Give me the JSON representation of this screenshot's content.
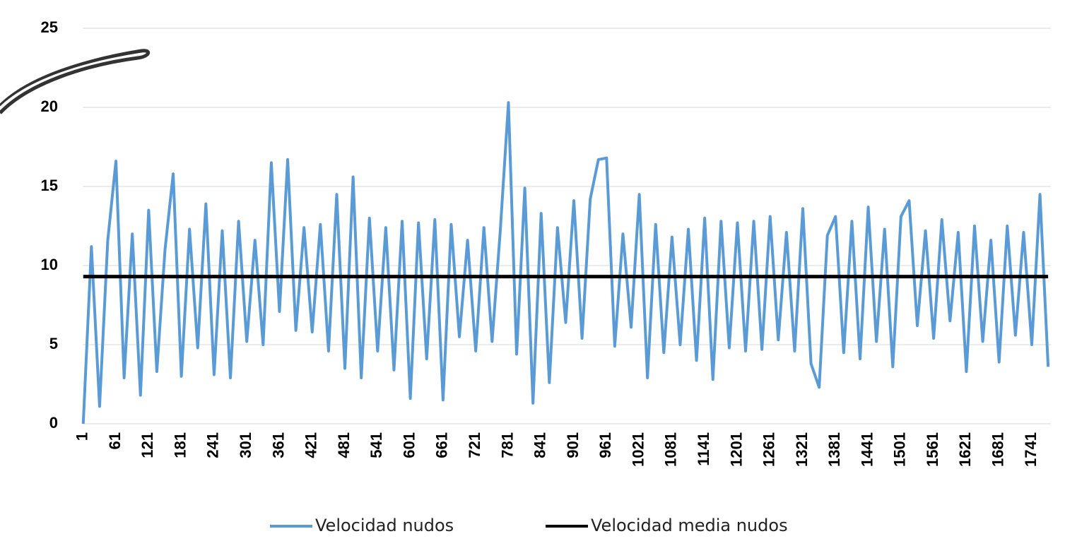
{
  "chart_data": {
    "type": "line",
    "xlim": [
      0,
      1776
    ],
    "xticks": [
      1,
      61,
      121,
      181,
      241,
      301,
      361,
      421,
      481,
      541,
      601,
      661,
      721,
      781,
      841,
      901,
      961,
      1021,
      1081,
      1141,
      1201,
      1261,
      1321,
      1381,
      1441,
      1501,
      1561,
      1621,
      1681,
      1741
    ],
    "ylim": [
      0,
      25
    ],
    "yticks": [
      0,
      5,
      10,
      15,
      20,
      25
    ],
    "grid": true,
    "legend": "bottom",
    "series": [
      {
        "name": "Velocidad nudos",
        "color": "#5b9bd5",
        "x": [
          1,
          16,
          31,
          46,
          61,
          76,
          91,
          106,
          121,
          136,
          151,
          166,
          181,
          196,
          211,
          226,
          241,
          256,
          271,
          286,
          301,
          316,
          331,
          346,
          361,
          376,
          391,
          406,
          421,
          436,
          451,
          466,
          481,
          496,
          511,
          526,
          541,
          556,
          571,
          586,
          601,
          616,
          631,
          646,
          661,
          676,
          691,
          706,
          721,
          736,
          751,
          766,
          781,
          796,
          811,
          826,
          841,
          856,
          871,
          886,
          901,
          916,
          931,
          946,
          961,
          976,
          991,
          1006,
          1021,
          1036,
          1051,
          1066,
          1081,
          1096,
          1111,
          1126,
          1141,
          1156,
          1171,
          1186,
          1201,
          1216,
          1231,
          1246,
          1261,
          1276,
          1291,
          1306,
          1321,
          1336,
          1351,
          1366,
          1381,
          1396,
          1411,
          1426,
          1441,
          1456,
          1471,
          1486,
          1501,
          1516,
          1531,
          1546,
          1561,
          1576,
          1591,
          1606,
          1621,
          1636,
          1651,
          1666,
          1681,
          1696,
          1711,
          1726,
          1741,
          1756,
          1771
        ],
        "values": [
          0,
          11.2,
          1.1,
          11.6,
          16.6,
          2.9,
          12.0,
          1.8,
          13.5,
          3.3,
          11.0,
          15.8,
          3.0,
          12.3,
          4.8,
          13.9,
          3.1,
          12.2,
          2.9,
          12.8,
          5.2,
          11.6,
          5.0,
          16.5,
          7.1,
          16.7,
          5.9,
          12.4,
          5.8,
          12.6,
          4.6,
          14.5,
          3.5,
          15.6,
          2.9,
          13.0,
          4.6,
          12.4,
          3.4,
          12.8,
          1.6,
          12.7,
          4.1,
          12.9,
          1.5,
          12.6,
          5.5,
          11.6,
          4.6,
          12.4,
          5.2,
          12.2,
          20.3,
          4.4,
          14.9,
          1.3,
          13.3,
          2.6,
          12.4,
          6.4,
          14.1,
          5.4,
          14.2,
          16.7,
          16.8,
          4.9,
          12.0,
          6.1,
          14.5,
          2.9,
          12.6,
          4.5,
          11.8,
          5.0,
          12.3,
          4.0,
          13.0,
          2.8,
          12.8,
          4.8,
          12.7,
          4.6,
          12.8,
          4.7,
          13.1,
          5.3,
          12.1,
          4.6,
          13.6,
          3.8,
          2.3,
          11.9,
          13.1,
          4.5,
          12.8,
          4.1,
          13.7,
          5.2,
          12.3,
          3.6,
          13.1,
          14.1,
          6.2,
          12.2,
          5.4,
          12.9,
          6.5,
          12.1,
          3.3,
          12.5,
          5.2,
          11.6,
          3.9,
          12.5,
          5.6,
          12.1,
          5.0,
          14.5,
          3.6
        ]
      },
      {
        "name": "Velocidad media nudos",
        "color": "#000000",
        "x": [
          1,
          1771
        ],
        "values": [
          9.3,
          9.3
        ]
      }
    ]
  }
}
